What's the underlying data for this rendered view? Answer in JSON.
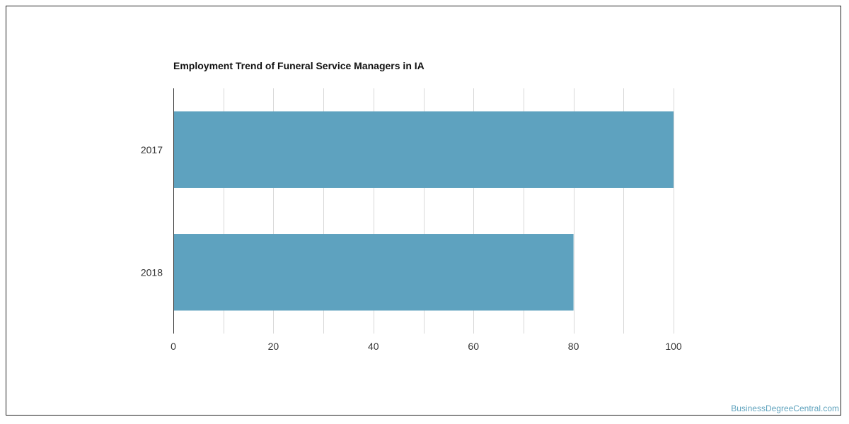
{
  "chart_data": {
    "type": "bar",
    "orientation": "horizontal",
    "title": "Employment Trend of Funeral Service Managers in IA",
    "categories": [
      "2017",
      "2018"
    ],
    "values": [
      100,
      80
    ],
    "xlabel": "",
    "ylabel": "",
    "xlim": [
      0,
      100
    ],
    "x_ticks": [
      0,
      20,
      40,
      60,
      80,
      100
    ],
    "grid": true,
    "legend": "none",
    "bar_color": "#5ea2bf"
  },
  "watermark": "BusinessDegreeCentral.com",
  "colors": {
    "bar": "#5ea2bf",
    "grid": "#d8d8d8",
    "axis": "#333333",
    "watermark": "#5ea2bd"
  }
}
